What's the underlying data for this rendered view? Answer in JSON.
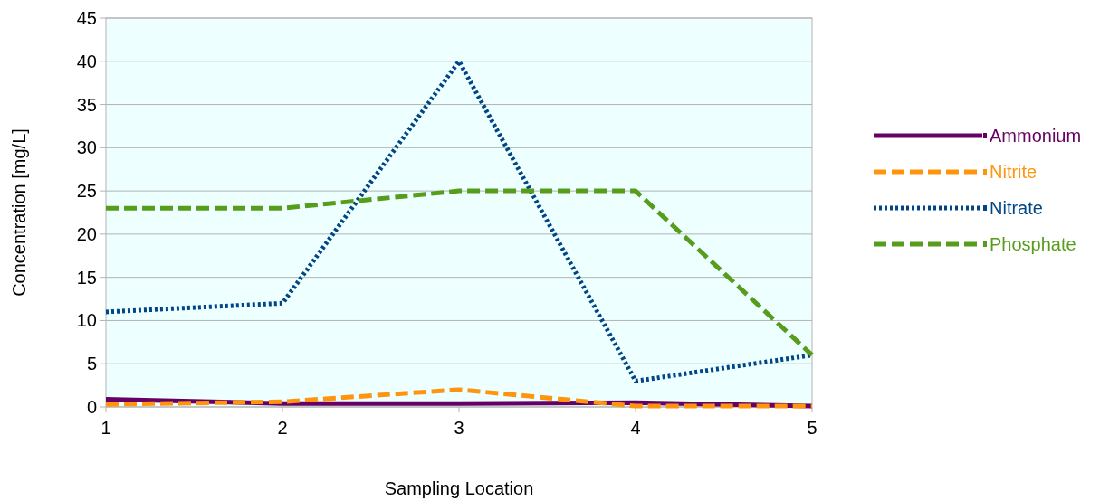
{
  "chart_data": {
    "type": "line",
    "xlabel": "Sampling Location",
    "ylabel": "Concentration [mg/L]",
    "x": [
      1,
      2,
      3,
      4,
      5
    ],
    "xlim": [
      1,
      5
    ],
    "xticks": [
      1,
      2,
      3,
      4,
      5
    ],
    "ylim": [
      0,
      45
    ],
    "yticks": [
      0,
      5,
      10,
      15,
      20,
      25,
      30,
      35,
      40,
      45
    ],
    "grid": "y",
    "legend": "right",
    "marker": "none",
    "series": [
      {
        "name": "Ammonium",
        "color": "#660066",
        "values": [
          0.9,
          0.4,
          0.4,
          0.5,
          0.1
        ],
        "line_style": "solid"
      },
      {
        "name": "Nitrite",
        "color": "#ff950e",
        "values": [
          0.3,
          0.6,
          2,
          0.1,
          0.1
        ],
        "line_style": "dashed"
      },
      {
        "name": "Nitrate",
        "color": "#004586",
        "values": [
          11,
          12,
          40,
          3,
          6
        ],
        "line_style": "dotted"
      },
      {
        "name": "Phosphate",
        "color": "#579d1c",
        "values": [
          23,
          23,
          25,
          25,
          6
        ],
        "line_style": "dashed"
      }
    ]
  }
}
